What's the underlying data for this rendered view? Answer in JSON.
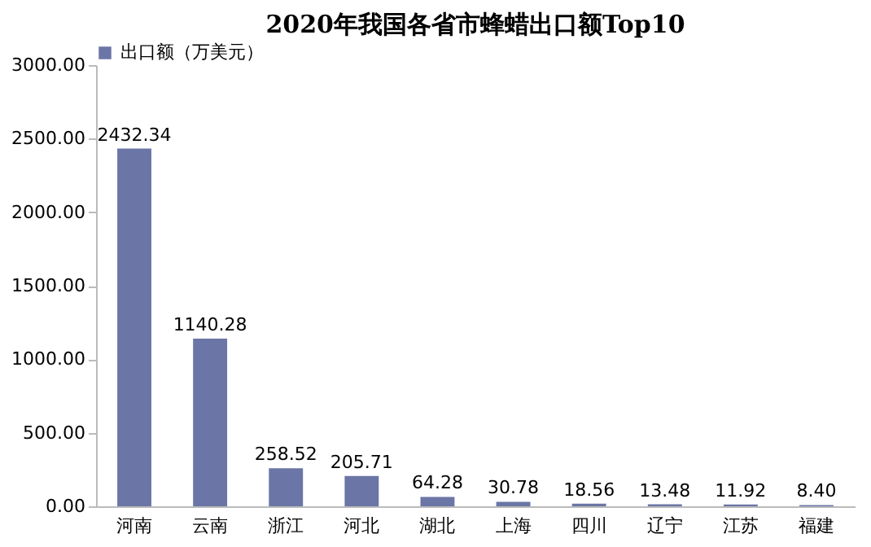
{
  "chart_data": {
    "type": "bar",
    "title": "2020年我国各省市蜂蜡出口额Top10",
    "categories": [
      "河南",
      "云南",
      "浙江",
      "河北",
      "湖北",
      "上海",
      "四川",
      "辽宁",
      "江苏",
      "福建"
    ],
    "series": [
      {
        "name": "出口额（万美元）",
        "color": "#6b76a6",
        "values": [
          2432.34,
          1140.28,
          258.52,
          205.71,
          64.28,
          30.78,
          18.56,
          13.48,
          11.92,
          8.4
        ],
        "value_labels": [
          "2432.34",
          "1140.28",
          "258.52",
          "205.71",
          "64.28",
          "30.78",
          "18.56",
          "13.48",
          "11.92",
          "8.40"
        ]
      }
    ],
    "ylim": [
      0,
      3000
    ],
    "yticks": [
      {
        "value": 0,
        "label": "0.00"
      },
      {
        "value": 500,
        "label": "500.00"
      },
      {
        "value": 1000,
        "label": "1000.00"
      },
      {
        "value": 1500,
        "label": "1500.00"
      },
      {
        "value": 2000,
        "label": "2000.00"
      },
      {
        "value": 2500,
        "label": "2500.00"
      },
      {
        "value": 3000,
        "label": "3000.00"
      }
    ],
    "grid": false,
    "legend": "top"
  }
}
